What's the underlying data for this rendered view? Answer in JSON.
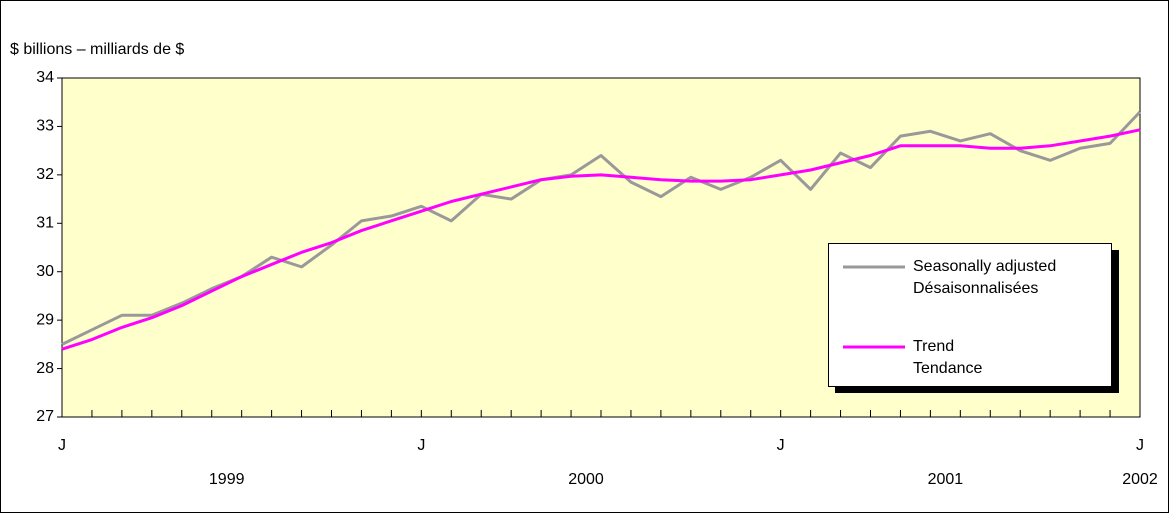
{
  "chart_data": {
    "type": "line",
    "y_label": "$ billions – milliards de $",
    "categories": [
      "J",
      null,
      null,
      null,
      null,
      null,
      null,
      null,
      null,
      null,
      null,
      null,
      "J",
      null,
      null,
      null,
      null,
      null,
      null,
      null,
      null,
      null,
      null,
      null,
      "J",
      null,
      null,
      null,
      null,
      null,
      null,
      null,
      null,
      null,
      null,
      null,
      "J"
    ],
    "years": [
      "1999",
      "2000",
      "2001",
      "2002"
    ],
    "series": [
      {
        "name": "Seasonally adjusted\nDésaisonnalisées",
        "color": "#999999",
        "values": [
          28.5,
          28.8,
          29.1,
          29.1,
          29.35,
          29.65,
          29.9,
          30.3,
          30.1,
          30.55,
          31.05,
          31.15,
          31.35,
          31.05,
          31.6,
          31.5,
          31.9,
          32.0,
          32.4,
          31.85,
          31.55,
          31.95,
          31.7,
          31.95,
          32.3,
          31.7,
          32.45,
          32.15,
          32.8,
          32.9,
          32.7,
          32.85,
          32.5,
          32.3,
          32.55,
          32.65,
          33.3
        ]
      },
      {
        "name": "Trend\nTendance",
        "color": "#ff00ff",
        "values": [
          28.4,
          28.6,
          28.85,
          29.05,
          29.3,
          29.6,
          29.9,
          30.15,
          30.4,
          30.6,
          30.85,
          31.05,
          31.25,
          31.45,
          31.6,
          31.75,
          31.9,
          31.97,
          32.0,
          31.95,
          31.9,
          31.87,
          31.87,
          31.9,
          32.0,
          32.1,
          32.25,
          32.4,
          32.6,
          32.6,
          32.6,
          32.55,
          32.55,
          32.6,
          32.7,
          32.8,
          32.93
        ]
      }
    ],
    "ylim": [
      27,
      34
    ],
    "yticks": [
      27,
      28,
      29,
      30,
      31,
      32,
      33,
      34
    ],
    "grid": false,
    "plot_background": "#ffffcc"
  }
}
